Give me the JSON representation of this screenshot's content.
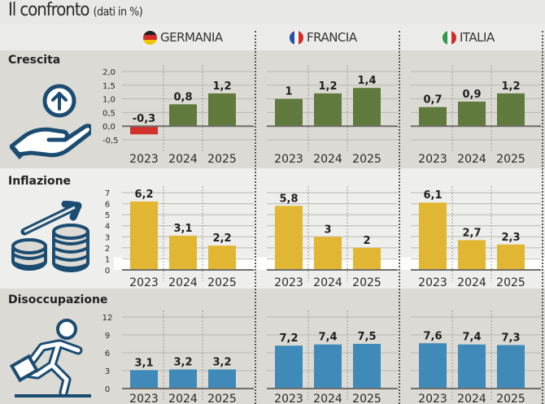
{
  "header": {
    "title": "Il confronto",
    "subtitle": "(dati in %)",
    "countries": [
      {
        "name": "GERMANIA",
        "flag": "germany-flag-icon"
      },
      {
        "name": "FRANCIA",
        "flag": "france-flag-icon"
      },
      {
        "name": "ITALIA",
        "flag": "italy-flag-icon"
      }
    ]
  },
  "colors": {
    "growth": "#5f7a3c",
    "growth_negative": "#d2312b",
    "inflation": "#e0b632",
    "unemployment": "#3f8ab8",
    "icon_stroke": "#1b4c72",
    "text": "#222222"
  },
  "chart_data": [
    {
      "type": "bar",
      "title": "Crescita",
      "icon": "hand-growth-icon",
      "categories": [
        "2023",
        "2024",
        "2025"
      ],
      "ylim": [
        -0.5,
        2.0
      ],
      "yticks": [
        "2,0",
        "1,5",
        "1,0",
        "0,5",
        "0,0",
        "-0,5"
      ],
      "ytick_values": [
        2.0,
        1.5,
        1.0,
        0.5,
        0.0,
        -0.5
      ],
      "series": [
        {
          "name": "GERMANIA",
          "values": [
            -0.3,
            0.8,
            1.2
          ],
          "labels": [
            "-0,3",
            "0,8",
            "1,2"
          ]
        },
        {
          "name": "FRANCIA",
          "values": [
            1.0,
            1.2,
            1.4
          ],
          "labels": [
            "1",
            "1,2",
            "1,4"
          ]
        },
        {
          "name": "ITALIA",
          "values": [
            0.7,
            0.9,
            1.2
          ],
          "labels": [
            "0,7",
            "0,9",
            "1,2"
          ]
        }
      ],
      "grid": true
    },
    {
      "type": "bar",
      "title": "Inflazione",
      "icon": "coins-rising-icon",
      "categories": [
        "2023",
        "2024",
        "2025"
      ],
      "ylim": [
        0,
        7
      ],
      "yticks": [
        "7",
        "6",
        "5",
        "4",
        "3",
        "2",
        "1",
        "0"
      ],
      "ytick_values": [
        7,
        6,
        5,
        4,
        3,
        2,
        1,
        0
      ],
      "series": [
        {
          "name": "GERMANIA",
          "values": [
            6.2,
            3.1,
            2.2
          ],
          "labels": [
            "6,2",
            "3,1",
            "2,2"
          ]
        },
        {
          "name": "FRANCIA",
          "values": [
            5.8,
            3.0,
            2.0
          ],
          "labels": [
            "5,8",
            "3",
            "2"
          ]
        },
        {
          "name": "ITALIA",
          "values": [
            6.1,
            2.7,
            2.3
          ],
          "labels": [
            "6,1",
            "2,7",
            "2,3"
          ]
        }
      ],
      "grid": true
    },
    {
      "type": "bar",
      "title": "Disoccupazione",
      "icon": "running-worker-icon",
      "categories": [
        "2023",
        "2024",
        "2025"
      ],
      "ylim": [
        0,
        12
      ],
      "yticks": [
        "12",
        "9",
        "6",
        "3",
        "0"
      ],
      "ytick_values": [
        12,
        9,
        6,
        3,
        0
      ],
      "series": [
        {
          "name": "GERMANIA",
          "values": [
            3.1,
            3.2,
            3.2
          ],
          "labels": [
            "3,1",
            "3,2",
            "3,2"
          ]
        },
        {
          "name": "FRANCIA",
          "values": [
            7.2,
            7.4,
            7.5
          ],
          "labels": [
            "7,2",
            "7,4",
            "7,5"
          ]
        },
        {
          "name": "ITALIA",
          "values": [
            7.6,
            7.4,
            7.3
          ],
          "labels": [
            "7,6",
            "7,4",
            "7,3"
          ]
        }
      ],
      "grid": true
    }
  ]
}
